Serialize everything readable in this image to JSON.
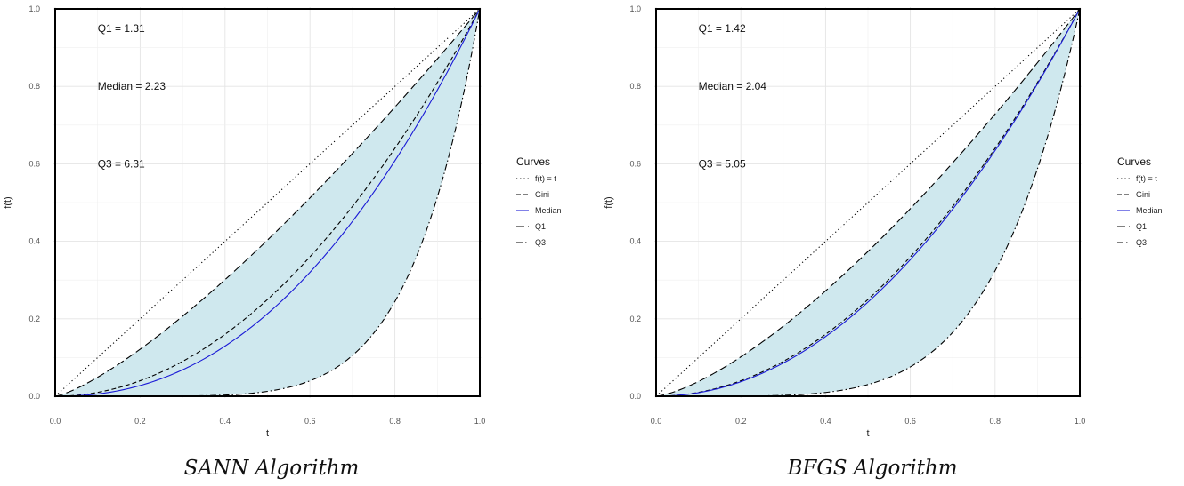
{
  "chart_data": [
    {
      "type": "line",
      "caption": "SANN Algorithm",
      "xlabel": "t",
      "ylabel": "f(t)",
      "xlim": [
        0,
        1
      ],
      "ylim": [
        0,
        1
      ],
      "x_ticks": [
        "0.0",
        "0.2",
        "0.4",
        "0.6",
        "0.8",
        "1.0"
      ],
      "y_ticks": [
        "0.0",
        "0.2",
        "0.4",
        "0.6",
        "0.8",
        "1.0"
      ],
      "grid": true,
      "shaded_band": {
        "between": [
          "Q1",
          "Q3"
        ],
        "color": "#cfe8ee"
      },
      "annotations": [
        {
          "text": "Q1 = 1.31",
          "t": 0.1,
          "f": 0.95
        },
        {
          "text": "Median = 2.23",
          "t": 0.1,
          "f": 0.8
        },
        {
          "text": "Q3 = 6.31",
          "t": 0.1,
          "f": 0.6
        }
      ],
      "legend": {
        "title": "Curves",
        "placement": "right"
      },
      "series": [
        {
          "name": "f(t) = t",
          "style": "dotted",
          "color": "#000000",
          "exponent": 1.0
        },
        {
          "name": "Gini",
          "style": "dashed",
          "color": "#000000",
          "exponent": 2.0
        },
        {
          "name": "Median",
          "style": "solid",
          "color": "#1a1ad6",
          "exponent": 2.23
        },
        {
          "name": "Q1",
          "style": "longdash",
          "color": "#000000",
          "exponent": 1.31
        },
        {
          "name": "Q3",
          "style": "dotdash",
          "color": "#000000",
          "exponent": 6.31
        }
      ]
    },
    {
      "type": "line",
      "caption": "BFGS Algorithm",
      "xlabel": "t",
      "ylabel": "f(t)",
      "xlim": [
        0,
        1
      ],
      "ylim": [
        0,
        1
      ],
      "x_ticks": [
        "0.0",
        "0.2",
        "0.4",
        "0.6",
        "0.8",
        "1.0"
      ],
      "y_ticks": [
        "0.0",
        "0.2",
        "0.4",
        "0.6",
        "0.8",
        "1.0"
      ],
      "grid": true,
      "shaded_band": {
        "between": [
          "Q1",
          "Q3"
        ],
        "color": "#cfe8ee"
      },
      "annotations": [
        {
          "text": "Q1 = 1.42",
          "t": 0.1,
          "f": 0.95
        },
        {
          "text": "Median = 2.04",
          "t": 0.1,
          "f": 0.8
        },
        {
          "text": "Q3 = 5.05",
          "t": 0.1,
          "f": 0.6
        }
      ],
      "legend": {
        "title": "Curves",
        "placement": "right"
      },
      "series": [
        {
          "name": "f(t) = t",
          "style": "dotted",
          "color": "#000000",
          "exponent": 1.0
        },
        {
          "name": "Gini",
          "style": "dashed",
          "color": "#000000",
          "exponent": 2.0
        },
        {
          "name": "Median",
          "style": "solid",
          "color": "#1a1ad6",
          "exponent": 2.04
        },
        {
          "name": "Q1",
          "style": "longdash",
          "color": "#000000",
          "exponent": 1.42
        },
        {
          "name": "Q3",
          "style": "dotdash",
          "color": "#000000",
          "exponent": 5.05
        }
      ]
    }
  ]
}
